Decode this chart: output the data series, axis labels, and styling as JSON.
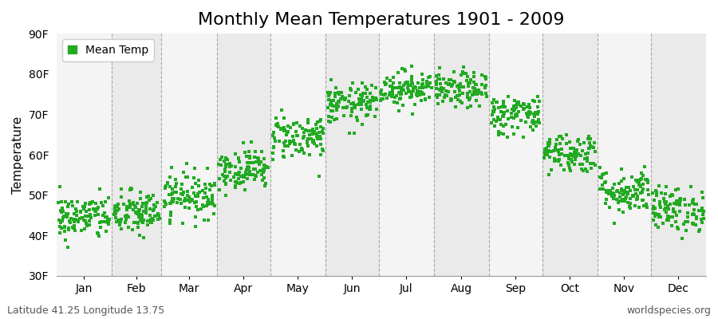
{
  "title": "Monthly Mean Temperatures 1901 - 2009",
  "ylabel": "Temperature",
  "xlabel": "",
  "footnote_left": "Latitude 41.25 Longitude 13.75",
  "footnote_right": "worldspecies.org",
  "legend_label": "Mean Temp",
  "ylim": [
    30,
    90
  ],
  "yticks": [
    30,
    40,
    50,
    60,
    70,
    80,
    90
  ],
  "ytick_labels": [
    "30F",
    "40F",
    "50F",
    "60F",
    "70F",
    "80F",
    "90F"
  ],
  "months": [
    "Jan",
    "Feb",
    "Mar",
    "Apr",
    "May",
    "Jun",
    "Jul",
    "Aug",
    "Sep",
    "Oct",
    "Nov",
    "Dec"
  ],
  "month_days": [
    31,
    28,
    31,
    30,
    31,
    30,
    31,
    31,
    30,
    31,
    30,
    31
  ],
  "dot_color": "#22AA22",
  "bg_color_light": "#F4F4F4",
  "bg_color_dark": "#EAEAEA",
  "grid_color": "#888888",
  "title_fontsize": 16,
  "axis_label_fontsize": 11,
  "tick_fontsize": 10,
  "footnote_fontsize": 9,
  "monthly_mean_F": [
    44.5,
    45.5,
    50.0,
    56.5,
    64.5,
    72.5,
    76.5,
    76.0,
    70.0,
    60.5,
    51.0,
    46.5
  ],
  "monthly_std_F": [
    2.8,
    2.8,
    2.8,
    2.5,
    2.8,
    2.5,
    2.2,
    2.2,
    2.5,
    2.5,
    2.8,
    2.8
  ],
  "n_years": 109,
  "seed": 42
}
